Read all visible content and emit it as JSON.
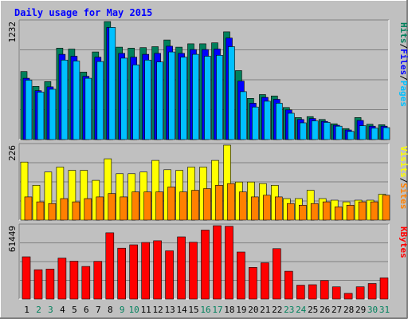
{
  "colors": {
    "background": "#C0C0C0",
    "hits": "#00805C",
    "files": "#0000FF",
    "pages": "#00C0FF",
    "visits": "#FFFF00",
    "sites": "#FF8000",
    "kbytes": "#FF0000",
    "title": "#0000FF",
    "weekend_day": "#00805C",
    "weekday": "#000000"
  },
  "chart_data": {
    "type": "bar",
    "title": "Daily usage for May 2015",
    "days": [
      "1",
      "2",
      "3",
      "4",
      "5",
      "6",
      "7",
      "8",
      "9",
      "10",
      "11",
      "12",
      "13",
      "14",
      "15",
      "16",
      "17",
      "18",
      "19",
      "20",
      "21",
      "22",
      "23",
      "24",
      "25",
      "26",
      "27",
      "28",
      "29",
      "30",
      "31"
    ],
    "weekend_days": [
      "2",
      "3",
      "9",
      "10",
      "16",
      "17",
      "23",
      "24",
      "30",
      "31"
    ],
    "panels": [
      {
        "id": "hits",
        "max_label": "1232",
        "ymax": 1232,
        "legend": [
          "Hits",
          "Files",
          "Pages"
        ],
        "series": [
          {
            "name": "Hits",
            "values": [
              710,
              555,
              605,
              955,
              945,
              705,
              915,
              1232,
              965,
              955,
              960,
              970,
              1040,
              965,
              1000,
              1000,
              1010,
              1125,
              720,
              430,
              470,
              455,
              335,
              230,
              240,
              210,
              165,
              115,
              230,
              160,
              155
            ]
          },
          {
            "name": "Files",
            "values": [
              640,
              510,
              550,
              890,
              870,
              660,
              860,
              1170,
              900,
              860,
              890,
              900,
              975,
              900,
              940,
              940,
              945,
              1060,
              610,
              380,
              440,
              420,
              310,
              210,
              220,
              190,
              150,
              100,
              200,
              140,
              140
            ]
          },
          {
            "name": "Pages",
            "values": [
              620,
              495,
              525,
              830,
              820,
              640,
              815,
              1170,
              850,
              780,
              830,
              810,
              915,
              860,
              890,
              870,
              880,
              970,
              500,
              340,
              400,
              380,
              275,
              175,
              195,
              180,
              140,
              85,
              145,
              120,
              125
            ]
          }
        ]
      },
      {
        "id": "visits",
        "max_label": "226",
        "ymax": 226,
        "legend": [
          "Visits",
          "Sites"
        ],
        "series": [
          {
            "name": "Visits",
            "values": [
              175,
              105,
              145,
              160,
              150,
              150,
              120,
              185,
              140,
              140,
              145,
              180,
              152,
              150,
              160,
              160,
              180,
              226,
              115,
              115,
              110,
              105,
              65,
              65,
              90,
              65,
              60,
              55,
              60,
              60,
              78
            ]
          },
          {
            "name": "Sites",
            "values": [
              70,
              55,
              50,
              65,
              55,
              65,
              70,
              80,
              70,
              85,
              85,
              85,
              100,
              85,
              90,
              95,
              105,
              110,
              85,
              70,
              75,
              70,
              50,
              45,
              50,
              55,
              40,
              45,
              55,
              55,
              75
            ]
          }
        ]
      },
      {
        "id": "kbytes",
        "max_label": "61449",
        "ymax": 61449,
        "legend": [
          "KBytes"
        ],
        "series": [
          {
            "name": "KBytes",
            "values": [
              35400,
              24600,
              25100,
              34300,
              31700,
              27300,
              31600,
              55500,
              42600,
              45400,
              47400,
              48800,
              40400,
              52100,
              47600,
              57800,
              61449,
              61000,
              39400,
              26500,
              30400,
              42200,
              23300,
              11600,
              12000,
              15500,
              10200,
              4800,
              10300,
              13000,
              17800
            ]
          }
        ]
      }
    ]
  }
}
